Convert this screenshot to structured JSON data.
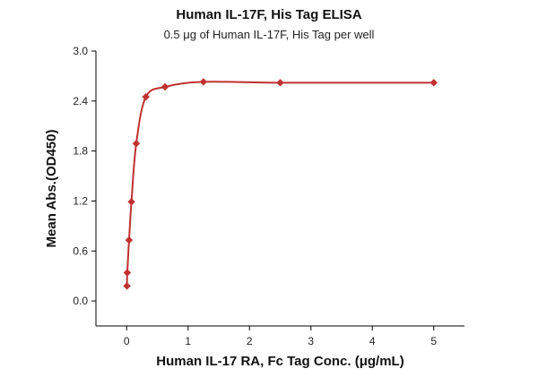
{
  "chart_data": {
    "type": "scatter",
    "title": "Human IL-17F, His Tag ELISA",
    "subtitle": "0.5 μg of Human IL-17F, His Tag per well",
    "xlabel": "Human IL-17 RA, Fc Tag Conc. (μg/mL)",
    "ylabel": "Mean Abs.(OD450)",
    "xlim": [
      -0.5,
      5.5
    ],
    "ylim": [
      -0.3,
      3.0
    ],
    "xticks": [
      0,
      1,
      2,
      3,
      4,
      5
    ],
    "yticks": [
      0.0,
      0.6,
      1.2,
      1.8,
      2.4,
      3.0
    ],
    "xtick_labels": [
      "0",
      "1",
      "2",
      "3",
      "4",
      "5"
    ],
    "ytick_labels": [
      "0.0",
      "0.6",
      "1.2",
      "1.8",
      "2.4",
      "3.0"
    ],
    "grid": false,
    "marker_color": "#c03030",
    "curve_color": "#c03030",
    "series": [
      {
        "x": [
          0.005,
          0.01,
          0.039,
          0.078,
          0.156,
          0.313,
          0.625,
          1.25,
          2.5,
          5.0
        ],
        "y": [
          0.18,
          0.34,
          0.73,
          1.19,
          1.89,
          2.45,
          2.57,
          2.63,
          2.62,
          2.62
        ]
      }
    ]
  }
}
